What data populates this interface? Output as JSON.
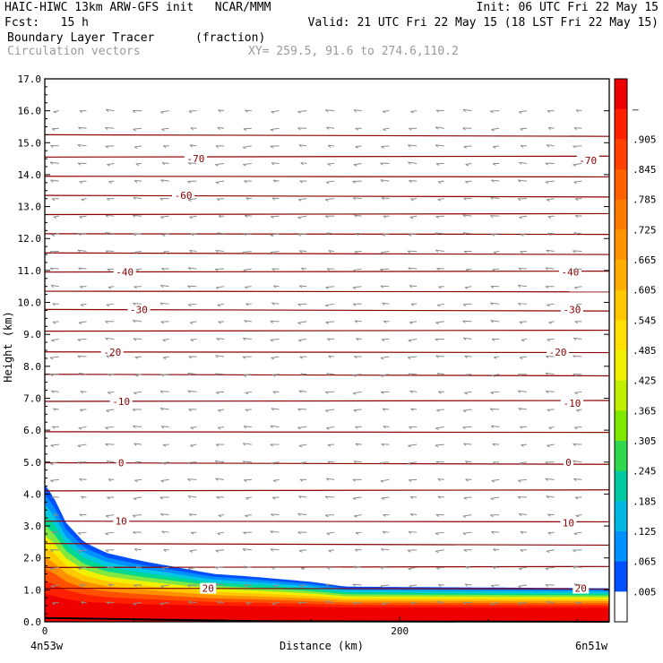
{
  "header": {
    "line1_left": "HAIC-HIWC 13km ARW-GFS init   NCAR/MMM",
    "line1_right": "Init: 06 UTC Fri 22 May 15",
    "line2_left": "Fcst:   15 h",
    "line2_right": "Valid: 21 UTC Fri 22 May 15 (18 LST Fri 22 May 15)",
    "field1_name": "Boundary Layer Tracer",
    "field1_units": "(fraction)",
    "field2_name": "Circulation vectors",
    "cross_section": "XY= 259.5, 91.6 to 274.6,110.2"
  },
  "colors": {
    "isotherm": "#8b0000",
    "vector": "#8c8c8c",
    "frame": "#000000"
  },
  "chart_data": {
    "type": "cross-section",
    "xlabel": "Distance (km)",
    "ylabel": "Height (km)",
    "xlim": [
      0,
      318
    ],
    "ylim": [
      0.0,
      17.0
    ],
    "x_ticks": [
      {
        "x": 0,
        "label": "0"
      },
      {
        "x": 200,
        "label": "200"
      }
    ],
    "x_endpoints": {
      "left": "4n53w",
      "right": "6n51w"
    },
    "y_ticks": [
      "0.0",
      "1.0",
      "2.0",
      "3.0",
      "4.0",
      "5.0",
      "6.0",
      "7.0",
      "8.0",
      "9.0",
      "10.0",
      "11.0",
      "12.0",
      "13.0",
      "14.0",
      "15.0",
      "16.0",
      "17.0"
    ],
    "colorbar_labels": [
      "–",
      ".905",
      ".845",
      ".785",
      ".725",
      ".665",
      ".605",
      ".545",
      ".485",
      ".425",
      ".365",
      ".305",
      ".245",
      ".185",
      ".125",
      ".065",
      ".005"
    ],
    "colorbar_colors": [
      "#ee0000",
      "#ff2000",
      "#ff4000",
      "#ff6000",
      "#ff7a00",
      "#ff9400",
      "#ffad00",
      "#ffc800",
      "#ffe000",
      "#f0f000",
      "#c0f000",
      "#80e800",
      "#30d850",
      "#00c8a0",
      "#00b8e0",
      "#0090ff",
      "#0050ff",
      "#ffffff"
    ],
    "isotherm_labels": [
      {
        "value": "-70",
        "x": [
          85,
          306
        ],
        "y": [
          14.5,
          14.45
        ]
      },
      {
        "value": "-60",
        "x": [
          78
        ],
        "y": [
          13.35
        ]
      },
      {
        "value": "-40",
        "x": [
          45,
          296
        ],
        "y": [
          10.95,
          10.95
        ]
      },
      {
        "value": "-30",
        "x": [
          53,
          297
        ],
        "y": [
          9.78,
          9.78
        ]
      },
      {
        "value": "-20",
        "x": [
          38,
          289
        ],
        "y": [
          8.45,
          8.45
        ]
      },
      {
        "value": "-10",
        "x": [
          43,
          297
        ],
        "y": [
          6.9,
          6.85
        ]
      },
      {
        "value": "0",
        "x": [
          43,
          295
        ],
        "y": [
          4.98,
          5.0
        ]
      },
      {
        "value": "10",
        "x": [
          43,
          295
        ],
        "y": [
          3.15,
          3.1
        ]
      },
      {
        "value": "20",
        "x": [
          92,
          302
        ],
        "y": [
          1.05,
          1.05
        ]
      }
    ],
    "terrain_top_km": [
      {
        "x": 0,
        "y": 4.3
      },
      {
        "x": 5,
        "y": 3.9
      },
      {
        "x": 12,
        "y": 3.1
      },
      {
        "x": 22,
        "y": 2.5
      },
      {
        "x": 35,
        "y": 2.15
      },
      {
        "x": 55,
        "y": 1.9
      },
      {
        "x": 75,
        "y": 1.7
      },
      {
        "x": 95,
        "y": 1.5
      },
      {
        "x": 120,
        "y": 1.4
      },
      {
        "x": 150,
        "y": 1.25
      },
      {
        "x": 170,
        "y": 1.1
      },
      {
        "x": 318,
        "y": 1.05
      }
    ]
  }
}
